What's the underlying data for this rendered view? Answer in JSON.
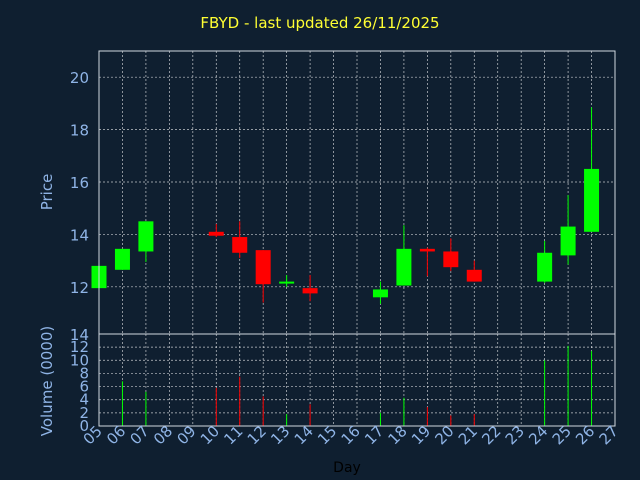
{
  "chart_data": {
    "type": "candlestick",
    "title": "FBYD - last updated 26/11/2025",
    "xlabel": "Day",
    "ylabel_price": "Price",
    "ylabel_volume": "Volume (0000)",
    "x_ticks": [
      "05",
      "06",
      "07",
      "08",
      "09",
      "10",
      "11",
      "12",
      "13",
      "14",
      "15",
      "16",
      "17",
      "18",
      "19",
      "20",
      "21",
      "22",
      "23",
      "24",
      "25",
      "26",
      "27"
    ],
    "price_ticks": [
      12,
      14,
      16,
      18,
      20
    ],
    "volume_ticks": [
      0,
      2,
      4,
      6,
      8,
      10,
      12
    ],
    "volume_top_label": "14",
    "price_range": [
      10.2,
      21.0
    ],
    "volume_range": [
      0,
      14
    ],
    "candles": [
      {
        "day": 5,
        "open": 11.95,
        "high": 12.8,
        "low": 11.95,
        "close": 12.8,
        "volume": 0
      },
      {
        "day": 6,
        "open": 12.65,
        "high": 13.45,
        "low": 12.65,
        "close": 13.45,
        "volume": 6.8
      },
      {
        "day": 7,
        "open": 13.35,
        "high": 14.5,
        "low": 12.95,
        "close": 14.5,
        "volume": 5.2
      },
      {
        "day": 10,
        "open": 14.1,
        "high": 14.4,
        "low": 13.9,
        "close": 13.95,
        "volume": 5.8
      },
      {
        "day": 11,
        "open": 13.9,
        "high": 14.5,
        "low": 13.1,
        "close": 13.3,
        "volume": 7.5
      },
      {
        "day": 12,
        "open": 13.4,
        "high": 13.4,
        "low": 11.4,
        "close": 12.1,
        "volume": 4.5
      },
      {
        "day": 13,
        "open": 12.2,
        "high": 12.45,
        "low": 12.0,
        "close": 12.2,
        "volume": 1.8
      },
      {
        "day": 14,
        "open": 11.95,
        "high": 12.45,
        "low": 11.45,
        "close": 11.75,
        "volume": 3.3
      },
      {
        "day": 17,
        "open": 11.6,
        "high": 12.2,
        "low": 11.35,
        "close": 11.9,
        "volume": 2.0
      },
      {
        "day": 18,
        "open": 12.05,
        "high": 14.35,
        "low": 12.05,
        "close": 13.45,
        "volume": 4.3
      },
      {
        "day": 19,
        "open": 13.45,
        "high": 13.5,
        "low": 12.4,
        "close": 13.35,
        "volume": 2.9
      },
      {
        "day": 20,
        "open": 13.35,
        "high": 13.85,
        "low": 12.6,
        "close": 12.75,
        "volume": 1.6
      },
      {
        "day": 21,
        "open": 12.65,
        "high": 13.0,
        "low": 12.2,
        "close": 12.2,
        "volume": 1.8
      },
      {
        "day": 24,
        "open": 12.2,
        "high": 13.75,
        "low": 12.15,
        "close": 13.3,
        "volume": 10.0
      },
      {
        "day": 25,
        "open": 13.2,
        "high": 15.5,
        "low": 12.85,
        "close": 14.3,
        "volume": 12.2
      },
      {
        "day": 26,
        "open": 14.1,
        "high": 18.85,
        "low": 14.1,
        "close": 16.5,
        "volume": 11.4
      }
    ],
    "grid": true,
    "colors": {
      "background": "#0f1f30",
      "up": "#00ff00",
      "down": "#ff0000",
      "title": "#ffff33",
      "axis_text": "#8fb4e6"
    }
  }
}
